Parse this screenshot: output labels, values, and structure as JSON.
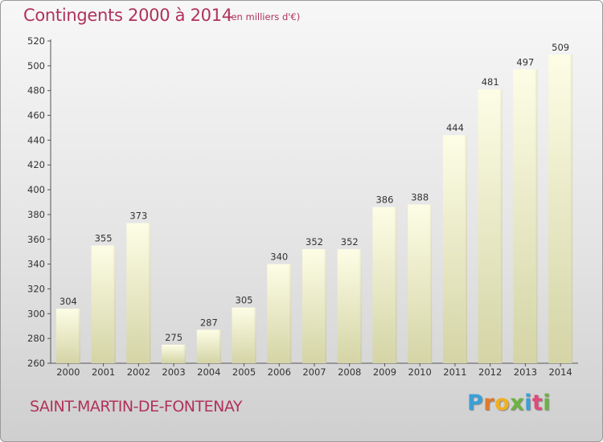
{
  "title": "Contingents 2000 à 2014",
  "subtitle": "(en milliers d'€)",
  "commune": "SAINT-MARTIN-DE-FONTENAY",
  "logo": {
    "p": "P",
    "r": "r",
    "o": "o",
    "x": "x",
    "i1": "i",
    "t": "t",
    "i2": "i"
  },
  "colors": {
    "accent": "#b0325a",
    "bar_top": "#fdfde8",
    "bar_bottom": "#d6d6a8"
  },
  "chart_data": {
    "type": "bar",
    "categories": [
      "2000",
      "2001",
      "2002",
      "2003",
      "2004",
      "2005",
      "2006",
      "2007",
      "2008",
      "2009",
      "2010",
      "2011",
      "2012",
      "2013",
      "2014"
    ],
    "values": [
      304,
      355,
      373,
      275,
      287,
      305,
      340,
      352,
      352,
      386,
      388,
      444,
      481,
      497,
      509
    ],
    "ylim": [
      260,
      520
    ],
    "yticks": [
      260,
      280,
      300,
      320,
      340,
      360,
      380,
      400,
      420,
      440,
      460,
      480,
      500,
      520
    ],
    "grid": false
  }
}
